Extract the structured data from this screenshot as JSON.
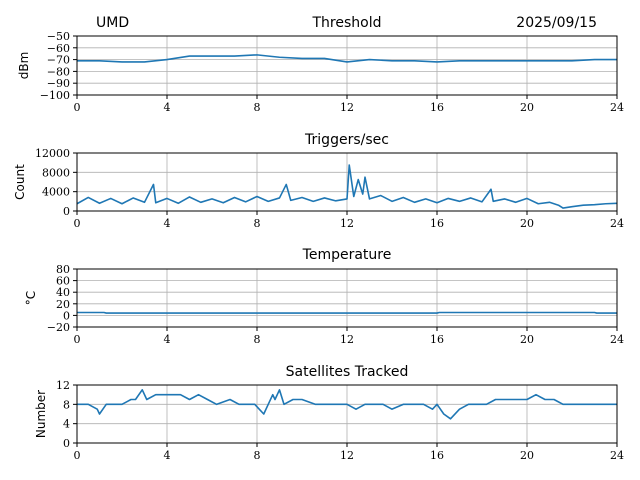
{
  "header": {
    "station": "UMD",
    "date": "2025/09/15"
  },
  "style": {
    "line_color": "#1f77b4",
    "grid_color": "#b0b0b0",
    "axis_color": "#000000"
  },
  "chart_data": [
    {
      "type": "line",
      "title": "Threshold",
      "xlabel": "",
      "ylabel": "dBm",
      "xlim": [
        0,
        24
      ],
      "ylim": [
        -100,
        -50
      ],
      "xticks": [
        0,
        4,
        8,
        12,
        16,
        20,
        24
      ],
      "xtick_labels": [
        "0",
        "4",
        "8",
        "12",
        "16",
        "20",
        "24"
      ],
      "yticks": [
        -100,
        -90,
        -80,
        -70,
        -60,
        -50
      ],
      "ytick_labels": [
        "−100",
        "−90",
        "−80",
        "−70",
        "−60",
        "−50"
      ],
      "grid": true,
      "series": [
        {
          "x": [
            0,
            1,
            2,
            3,
            4,
            5,
            6,
            7,
            8,
            9,
            10,
            11,
            12,
            13,
            14,
            15,
            16,
            17,
            18,
            19,
            20,
            21,
            22,
            23,
            24
          ],
          "y": [
            -71,
            -71,
            -72,
            -72,
            -70,
            -67,
            -67,
            -67,
            -66,
            -68,
            -69,
            -69,
            -72,
            -70,
            -71,
            -71,
            -72,
            -71,
            -71,
            -71,
            -71,
            -71,
            -71,
            -70,
            -70
          ]
        }
      ]
    },
    {
      "type": "line",
      "title": "Triggers/sec",
      "xlabel": "",
      "ylabel": "Count",
      "xlim": [
        0,
        24
      ],
      "ylim": [
        0,
        12000
      ],
      "xticks": [
        0,
        4,
        8,
        12,
        16,
        20,
        24
      ],
      "xtick_labels": [
        "0",
        "4",
        "8",
        "12",
        "16",
        "20",
        "24"
      ],
      "yticks": [
        0,
        4000,
        8000,
        12000
      ],
      "ytick_labels": [
        "0",
        "4000",
        "8000",
        "12000"
      ],
      "grid": true,
      "series": [
        {
          "x": [
            0,
            0.5,
            1,
            1.5,
            2,
            2.5,
            3,
            3.4,
            3.5,
            4,
            4.5,
            5,
            5.5,
            6,
            6.5,
            7,
            7.5,
            8,
            8.5,
            9,
            9.3,
            9.5,
            10,
            10.5,
            11,
            11.5,
            12,
            12.1,
            12.3,
            12.5,
            12.7,
            12.8,
            13,
            13.5,
            14,
            14.5,
            15,
            15.5,
            16,
            16.5,
            17,
            17.5,
            18,
            18.4,
            18.5,
            19,
            19.5,
            20,
            20.5,
            21,
            21.4,
            21.6,
            22,
            22.5,
            23,
            23.5,
            24
          ],
          "y": [
            1500,
            2800,
            1600,
            2600,
            1500,
            2700,
            1800,
            5500,
            1700,
            2600,
            1600,
            2900,
            1800,
            2500,
            1700,
            2800,
            1900,
            3000,
            2000,
            2700,
            5500,
            2200,
            2800,
            2000,
            2700,
            2100,
            2500,
            9500,
            3000,
            6500,
            3500,
            7000,
            2500,
            3200,
            2000,
            2800,
            1800,
            2500,
            1700,
            2600,
            2000,
            2700,
            1900,
            4500,
            2000,
            2500,
            1800,
            2600,
            1500,
            1800,
            1200,
            600,
            900,
            1200,
            1300,
            1500,
            1600
          ]
        }
      ]
    },
    {
      "type": "line",
      "title": "Temperature",
      "xlabel": "",
      "ylabel": "°C",
      "xlim": [
        0,
        24
      ],
      "ylim": [
        -20,
        80
      ],
      "xticks": [
        0,
        4,
        8,
        12,
        16,
        20,
        24
      ],
      "xtick_labels": [
        "0",
        "4",
        "8",
        "12",
        "16",
        "20",
        "24"
      ],
      "yticks": [
        -20,
        0,
        20,
        40,
        60,
        80
      ],
      "ytick_labels": [
        "−20",
        "0",
        "20",
        "40",
        "60",
        "80"
      ],
      "grid": true,
      "series": [
        {
          "x": [
            0,
            1.2,
            1.3,
            16,
            16.1,
            23,
            23.1,
            24
          ],
          "y": [
            5,
            5,
            4,
            4,
            5,
            5,
            4,
            4
          ]
        }
      ]
    },
    {
      "type": "line",
      "title": "Satellites Tracked",
      "xlabel": "",
      "ylabel": "Number",
      "xlim": [
        0,
        24
      ],
      "ylim": [
        0,
        12
      ],
      "xticks": [
        0,
        4,
        8,
        12,
        16,
        20,
        24
      ],
      "xtick_labels": [
        "0",
        "4",
        "8",
        "12",
        "16",
        "20",
        "24"
      ],
      "yticks": [
        0,
        4,
        8,
        12
      ],
      "ytick_labels": [
        "0",
        "4",
        "8",
        "12"
      ],
      "grid": true,
      "series": [
        {
          "x": [
            0,
            0.5,
            0.9,
            1.0,
            1.3,
            1.7,
            2.0,
            2.4,
            2.6,
            2.9,
            3.1,
            3.5,
            4.0,
            4.6,
            5.0,
            5.4,
            5.8,
            6.2,
            6.8,
            7.2,
            7.6,
            7.9,
            8.1,
            8.3,
            8.5,
            8.7,
            8.8,
            9.0,
            9.2,
            9.6,
            10.0,
            10.6,
            11.0,
            11.5,
            12.0,
            12.4,
            12.8,
            13.2,
            13.6,
            14.0,
            14.5,
            15.0,
            15.4,
            15.8,
            16.0,
            16.3,
            16.6,
            17.0,
            17.4,
            17.8,
            18.2,
            18.6,
            19.0,
            19.5,
            20.0,
            20.4,
            20.8,
            21.2,
            21.6,
            22.0,
            22.6,
            23.0,
            23.5,
            24
          ],
          "y": [
            8,
            8,
            7,
            6,
            8,
            8,
            8,
            9,
            9,
            11,
            9,
            10,
            10,
            10,
            9,
            10,
            9,
            8,
            9,
            8,
            8,
            8,
            7,
            6,
            8,
            10,
            9,
            11,
            8,
            9,
            9,
            8,
            8,
            8,
            8,
            7,
            8,
            8,
            8,
            7,
            8,
            8,
            8,
            7,
            8,
            6,
            5,
            7,
            8,
            8,
            8,
            9,
            9,
            9,
            9,
            10,
            9,
            9,
            8,
            8,
            8,
            8,
            8,
            8
          ]
        }
      ]
    }
  ]
}
